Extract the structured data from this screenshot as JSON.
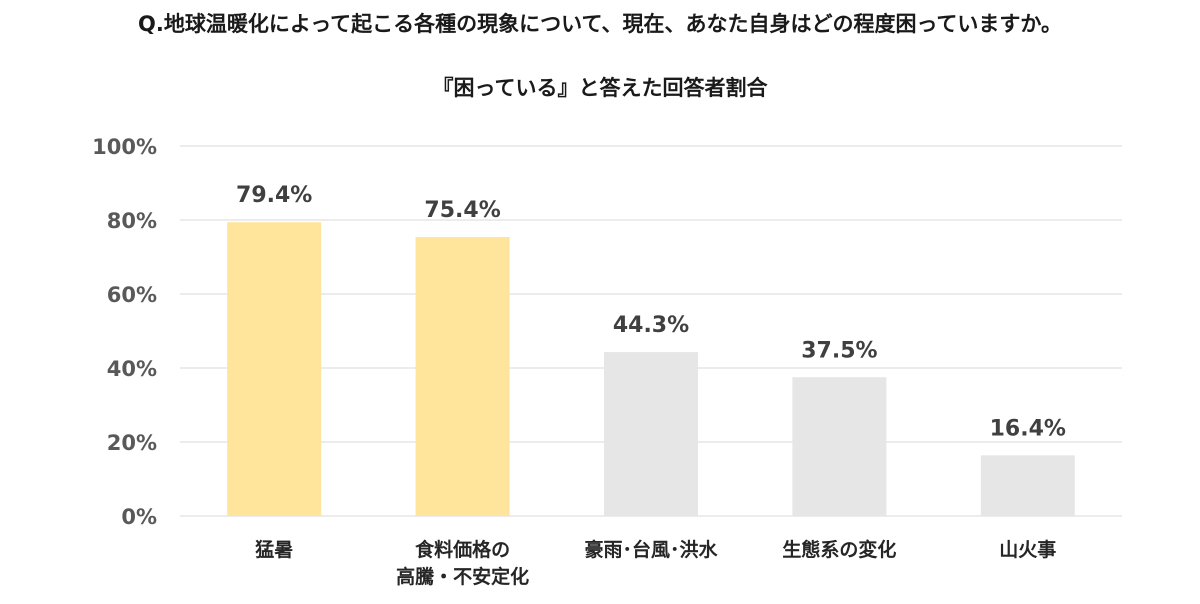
{
  "question": "Q.地球温暖化によって起こる各種の現象について、現在、あなた自身はどの程度困っていますか。",
  "chart_data": {
    "type": "bar",
    "title": "『困っている』と答えた回答者割合",
    "categories": [
      [
        "猛暑"
      ],
      [
        "食料価格の",
        "高騰・不安定化"
      ],
      [
        "豪雨･台風･洪水"
      ],
      [
        "生態系の変化"
      ],
      [
        "山火事"
      ]
    ],
    "values": [
      79.4,
      75.4,
      44.3,
      37.5,
      16.4
    ],
    "data_labels": [
      "79.4%",
      "75.4%",
      "44.3%",
      "37.5%",
      "16.4%"
    ],
    "bar_colors": [
      "#ffe49b",
      "#ffe49b",
      "#e6e6e6",
      "#e6e6e6",
      "#e6e6e6"
    ],
    "ylim": [
      0,
      100
    ],
    "yticks": [
      0,
      20,
      40,
      60,
      80,
      100
    ],
    "ytick_labels": [
      "0%",
      "20%",
      "40%",
      "60%",
      "80%",
      "100%"
    ],
    "grid": true,
    "gridline_color": "#d9d9d9",
    "xlabel": "",
    "ylabel": ""
  }
}
